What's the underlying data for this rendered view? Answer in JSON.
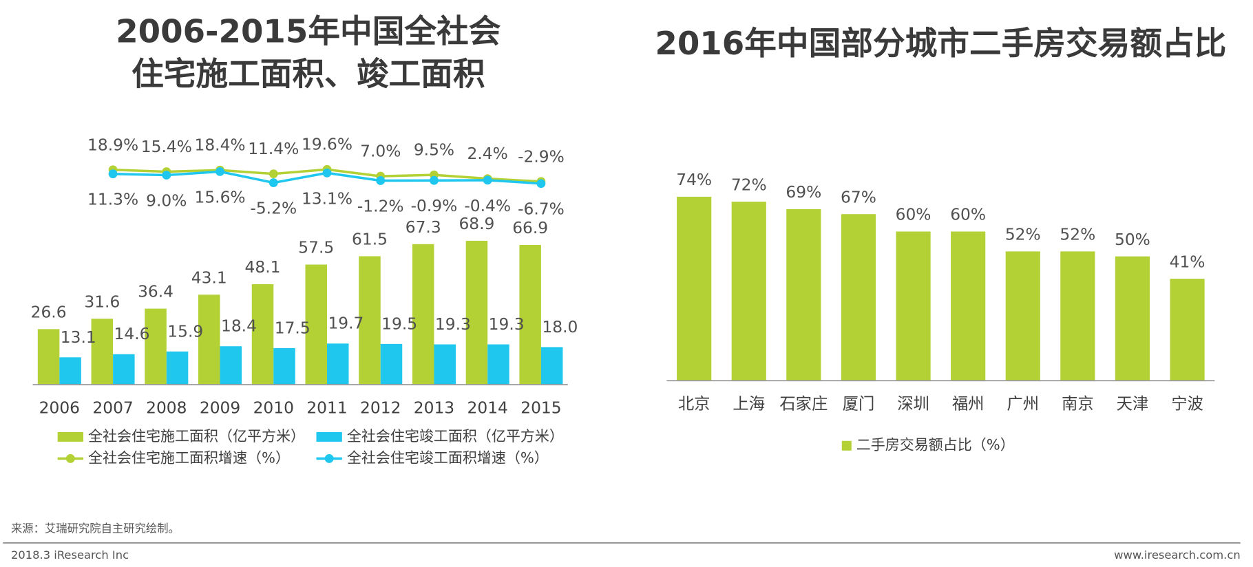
{
  "chart_data": [
    {
      "type": "bar",
      "title": [
        "2006-2015年中国全社会",
        "住宅施工面积、竣工面积"
      ],
      "categories": [
        "2006",
        "2007",
        "2008",
        "2009",
        "2010",
        "2011",
        "2012",
        "2013",
        "2014",
        "2015"
      ],
      "ylim": [
        0,
        126.5
      ],
      "y2lim": [
        -382,
        111
      ],
      "series": [
        {
          "name": "全社会住宅施工面积（亿平方米）",
          "type": "bar",
          "color": "#b3d135",
          "values": [
            26.6,
            31.6,
            36.4,
            43.1,
            48.1,
            57.5,
            61.5,
            67.3,
            68.9,
            66.9
          ]
        },
        {
          "name": "全社会住宅竣工面积（亿平方米）",
          "type": "bar",
          "color": "#1fc7ef",
          "values": [
            13.1,
            14.6,
            15.9,
            18.4,
            17.5,
            19.7,
            19.5,
            19.3,
            19.3,
            18.0
          ],
          "value_labels": [
            "13.1",
            "14.6",
            "15.9",
            "18.4",
            "17.5",
            "19.7",
            "19.5",
            "19.3",
            "19.3",
            "18.0"
          ]
        },
        {
          "name": "全社会住宅施工面积增速（%）",
          "type": "line",
          "axis": "y2",
          "color": "#b3d135",
          "values": [
            null,
            18.9,
            15.4,
            18.4,
            11.4,
            19.6,
            7.0,
            9.5,
            2.4,
            -2.9
          ],
          "value_labels": [
            null,
            "18.9%",
            "15.4%",
            "18.4%",
            "11.4%",
            "19.6%",
            "7.0%",
            "9.5%",
            "2.4%",
            "-2.9%"
          ]
        },
        {
          "name": "全社会住宅竣工面积增速（%）",
          "type": "line",
          "axis": "y2",
          "color": "#1fc7ef",
          "values": [
            null,
            11.3,
            9.0,
            15.6,
            -5.2,
            13.1,
            -1.2,
            -0.9,
            -0.4,
            -6.7
          ],
          "value_labels": [
            null,
            "11.3%",
            "9.0%",
            "15.6%",
            "-5.2%",
            "13.1%",
            "-1.2%",
            "-0.9%",
            "-0.4%",
            "-6.7%"
          ]
        }
      ]
    },
    {
      "type": "bar",
      "title": [
        "2016年中国部分城市二手房交易额占比"
      ],
      "categories": [
        "北京",
        "上海",
        "石家庄",
        "厦门",
        "深圳",
        "福州",
        "广州",
        "南京",
        "天津",
        "宁波"
      ],
      "ylim": [
        0,
        100
      ],
      "series": [
        {
          "name": "二手房交易额占比（%）",
          "type": "bar",
          "color": "#b3d135",
          "values": [
            74,
            72,
            69,
            67,
            60,
            60,
            52,
            52,
            50,
            41
          ],
          "value_labels": [
            "74%",
            "72%",
            "69%",
            "67%",
            "60%",
            "60%",
            "52%",
            "52%",
            "50%",
            "41%"
          ]
        }
      ]
    }
  ],
  "source": "来源：艾瑞研究院自主研究绘制。",
  "footer_left": "2018.3 iResearch Inc",
  "footer_right": "www.iresearch.com.cn"
}
